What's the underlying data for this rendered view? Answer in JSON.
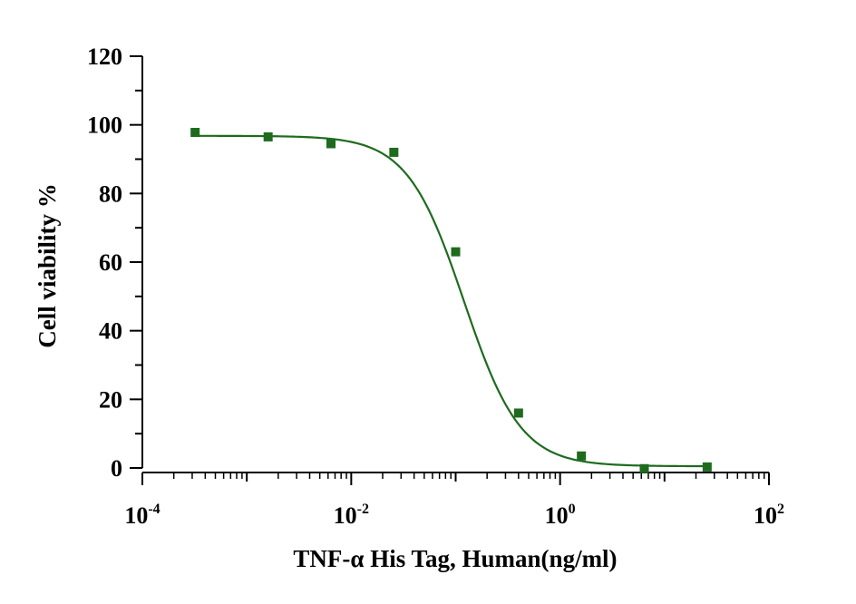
{
  "chart_data": {
    "type": "scatter",
    "title": "",
    "xlabel": "TNF-α His Tag, Human(ng/ml)",
    "ylabel": "Cell viability %",
    "x_scale": "log",
    "xlim": [
      0.0001,
      100
    ],
    "ylim": [
      0,
      120
    ],
    "x_ticks": [
      {
        "base": "10",
        "exp": "-4"
      },
      {
        "base": "10",
        "exp": "-2"
      },
      {
        "base": "10",
        "exp": "0"
      },
      {
        "base": "10",
        "exp": "2"
      }
    ],
    "y_ticks": [
      "0",
      "20",
      "40",
      "60",
      "80",
      "100",
      "120"
    ],
    "grid": false,
    "colors": {
      "series": "#1e6b1e",
      "axis": "#000000"
    },
    "series": [
      {
        "marker": "square",
        "points": [
          {
            "x": 0.00032,
            "y": 97.8
          },
          {
            "x": 0.0016,
            "y": 96.5
          },
          {
            "x": 0.0064,
            "y": 94.5
          },
          {
            "x": 0.0256,
            "y": 92.0
          },
          {
            "x": 0.1,
            "y": 63.0
          },
          {
            "x": 0.4,
            "y": 16.0
          },
          {
            "x": 1.6,
            "y": 3.5
          },
          {
            "x": 6.4,
            "y": -0.2
          },
          {
            "x": 25.6,
            "y": 0.3
          }
        ]
      }
    ],
    "fit_curve": {
      "type": "4PL",
      "top": 96.8,
      "bottom": 0.5,
      "ec50": 0.12,
      "hill": 1.6,
      "x_range": [
        0.00032,
        25.6
      ]
    }
  }
}
